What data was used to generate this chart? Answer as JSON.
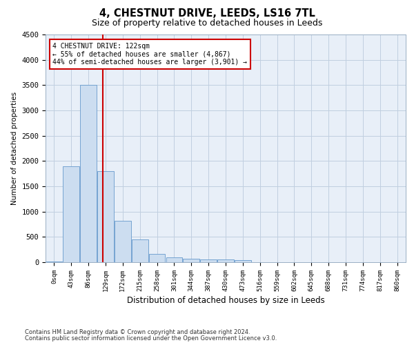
{
  "title1": "4, CHESTNUT DRIVE, LEEDS, LS16 7TL",
  "title2": "Size of property relative to detached houses in Leeds",
  "xlabel": "Distribution of detached houses by size in Leeds",
  "ylabel": "Number of detached properties",
  "bar_labels": [
    "0sqm",
    "43sqm",
    "86sqm",
    "129sqm",
    "172sqm",
    "215sqm",
    "258sqm",
    "301sqm",
    "344sqm",
    "387sqm",
    "430sqm",
    "473sqm",
    "516sqm",
    "559sqm",
    "602sqm",
    "645sqm",
    "688sqm",
    "731sqm",
    "774sqm",
    "817sqm",
    "860sqm"
  ],
  "bar_heights": [
    8,
    1900,
    3500,
    1800,
    820,
    450,
    160,
    95,
    70,
    55,
    50,
    45,
    0,
    0,
    0,
    0,
    0,
    0,
    0,
    0,
    0
  ],
  "bar_color": "#ccddf0",
  "bar_edge_color": "#6699cc",
  "property_line_x": 2.82,
  "annotation_text": "4 CHESTNUT DRIVE: 122sqm\n← 55% of detached houses are smaller (4,867)\n44% of semi-detached houses are larger (3,901) →",
  "annotation_box_color": "#ffffff",
  "annotation_box_edge": "#cc0000",
  "line_color": "#cc0000",
  "ylim": [
    0,
    4500
  ],
  "yticks": [
    0,
    500,
    1000,
    1500,
    2000,
    2500,
    3000,
    3500,
    4000,
    4500
  ],
  "footer1": "Contains HM Land Registry data © Crown copyright and database right 2024.",
  "footer2": "Contains public sector information licensed under the Open Government Licence v3.0.",
  "bg_color": "#ffffff",
  "plot_bg_color": "#e8eff8",
  "grid_color": "#c0cfe0",
  "title1_fontsize": 10.5,
  "title2_fontsize": 9
}
